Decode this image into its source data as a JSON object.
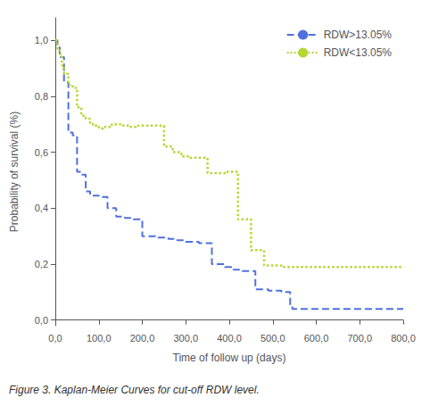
{
  "chart_data": {
    "type": "step",
    "xlabel": "Time of follow up (days)",
    "ylabel": "Probability of survival (%)",
    "caption": "Figure 3. Kaplan-Meier Curves for cut-off RDW level.",
    "xlim": [
      0,
      800
    ],
    "ylim": [
      -0.02,
      1.08
    ],
    "xticks": [
      {
        "value": 0,
        "label": "0,0"
      },
      {
        "value": 100,
        "label": "100,0"
      },
      {
        "value": 200,
        "label": "200,0"
      },
      {
        "value": 300,
        "label": "300,0"
      },
      {
        "value": 400,
        "label": "400,0"
      },
      {
        "value": 500,
        "label": "500,0"
      },
      {
        "value": 600,
        "label": "600,0"
      },
      {
        "value": 700,
        "label": "700,0"
      },
      {
        "value": 800,
        "label": "800,0"
      }
    ],
    "yticks": [
      {
        "value": 0.0,
        "label": "0,0"
      },
      {
        "value": 0.2,
        "label": "0,2"
      },
      {
        "value": 0.4,
        "label": "0,4"
      },
      {
        "value": 0.6,
        "label": "0,6"
      },
      {
        "value": 0.8,
        "label": "0,8"
      },
      {
        "value": 1.0,
        "label": "1,0"
      }
    ],
    "grid": false,
    "legend": "upper right",
    "series": [
      {
        "name": "RDW>13.05%",
        "line_style": "dashed",
        "x": [
          0,
          5,
          5,
          10,
          10,
          20,
          20,
          30,
          30,
          40,
          40,
          50,
          50,
          60,
          60,
          70,
          70,
          80,
          80,
          100,
          100,
          120,
          120,
          140,
          140,
          160,
          160,
          180,
          180,
          200,
          200,
          230,
          230,
          260,
          260,
          280,
          280,
          300,
          300,
          330,
          330,
          360,
          360,
          390,
          390,
          410,
          410,
          430,
          430,
          460,
          460,
          490,
          490,
          520,
          520,
          540,
          540,
          545,
          545,
          550,
          550,
          560,
          560,
          570,
          570,
          590,
          590,
          605,
          605,
          800
        ],
        "values": [
          1.0,
          1.0,
          0.98,
          0.98,
          0.94,
          0.94,
          0.85,
          0.85,
          0.67,
          0.67,
          0.66,
          0.66,
          0.53,
          0.53,
          0.52,
          0.52,
          0.46,
          0.46,
          0.445,
          0.445,
          0.44,
          0.44,
          0.4,
          0.4,
          0.37,
          0.37,
          0.365,
          0.365,
          0.36,
          0.36,
          0.3,
          0.3,
          0.295,
          0.295,
          0.29,
          0.29,
          0.285,
          0.285,
          0.28,
          0.28,
          0.275,
          0.275,
          0.2,
          0.2,
          0.19,
          0.19,
          0.18,
          0.18,
          0.175,
          0.175,
          0.11,
          0.11,
          0.105,
          0.105,
          0.1,
          0.1,
          0.05,
          0.05,
          0.04,
          0.04,
          0.04,
          0.04,
          0.04,
          0.04,
          0.04,
          0.04,
          0.04,
          0.04,
          0.04,
          0.04
        ]
      },
      {
        "name": "RDW<13.05%",
        "line_style": "dotted",
        "x": [
          0,
          5,
          5,
          10,
          10,
          15,
          15,
          20,
          20,
          30,
          30,
          40,
          40,
          50,
          50,
          60,
          60,
          70,
          70,
          80,
          80,
          90,
          90,
          100,
          100,
          110,
          110,
          130,
          130,
          150,
          150,
          170,
          170,
          190,
          190,
          210,
          210,
          230,
          230,
          250,
          250,
          270,
          270,
          290,
          290,
          310,
          310,
          330,
          330,
          350,
          350,
          380,
          380,
          395,
          395,
          420,
          420,
          450,
          450,
          480,
          480,
          520,
          520,
          550,
          550,
          560,
          560,
          800
        ],
        "values": [
          1.0,
          1.0,
          0.97,
          0.97,
          0.95,
          0.95,
          0.91,
          0.91,
          0.88,
          0.88,
          0.84,
          0.84,
          0.83,
          0.83,
          0.76,
          0.76,
          0.73,
          0.73,
          0.72,
          0.72,
          0.7,
          0.7,
          0.695,
          0.695,
          0.685,
          0.685,
          0.69,
          0.69,
          0.7,
          0.7,
          0.695,
          0.695,
          0.69,
          0.69,
          0.695,
          0.695,
          0.695,
          0.695,
          0.695,
          0.695,
          0.62,
          0.62,
          0.6,
          0.6,
          0.585,
          0.585,
          0.58,
          0.58,
          0.58,
          0.58,
          0.525,
          0.525,
          0.525,
          0.525,
          0.53,
          0.53,
          0.36,
          0.36,
          0.25,
          0.25,
          0.195,
          0.195,
          0.19,
          0.19,
          0.19,
          0.19,
          0.19,
          0.19
        ]
      }
    ]
  }
}
